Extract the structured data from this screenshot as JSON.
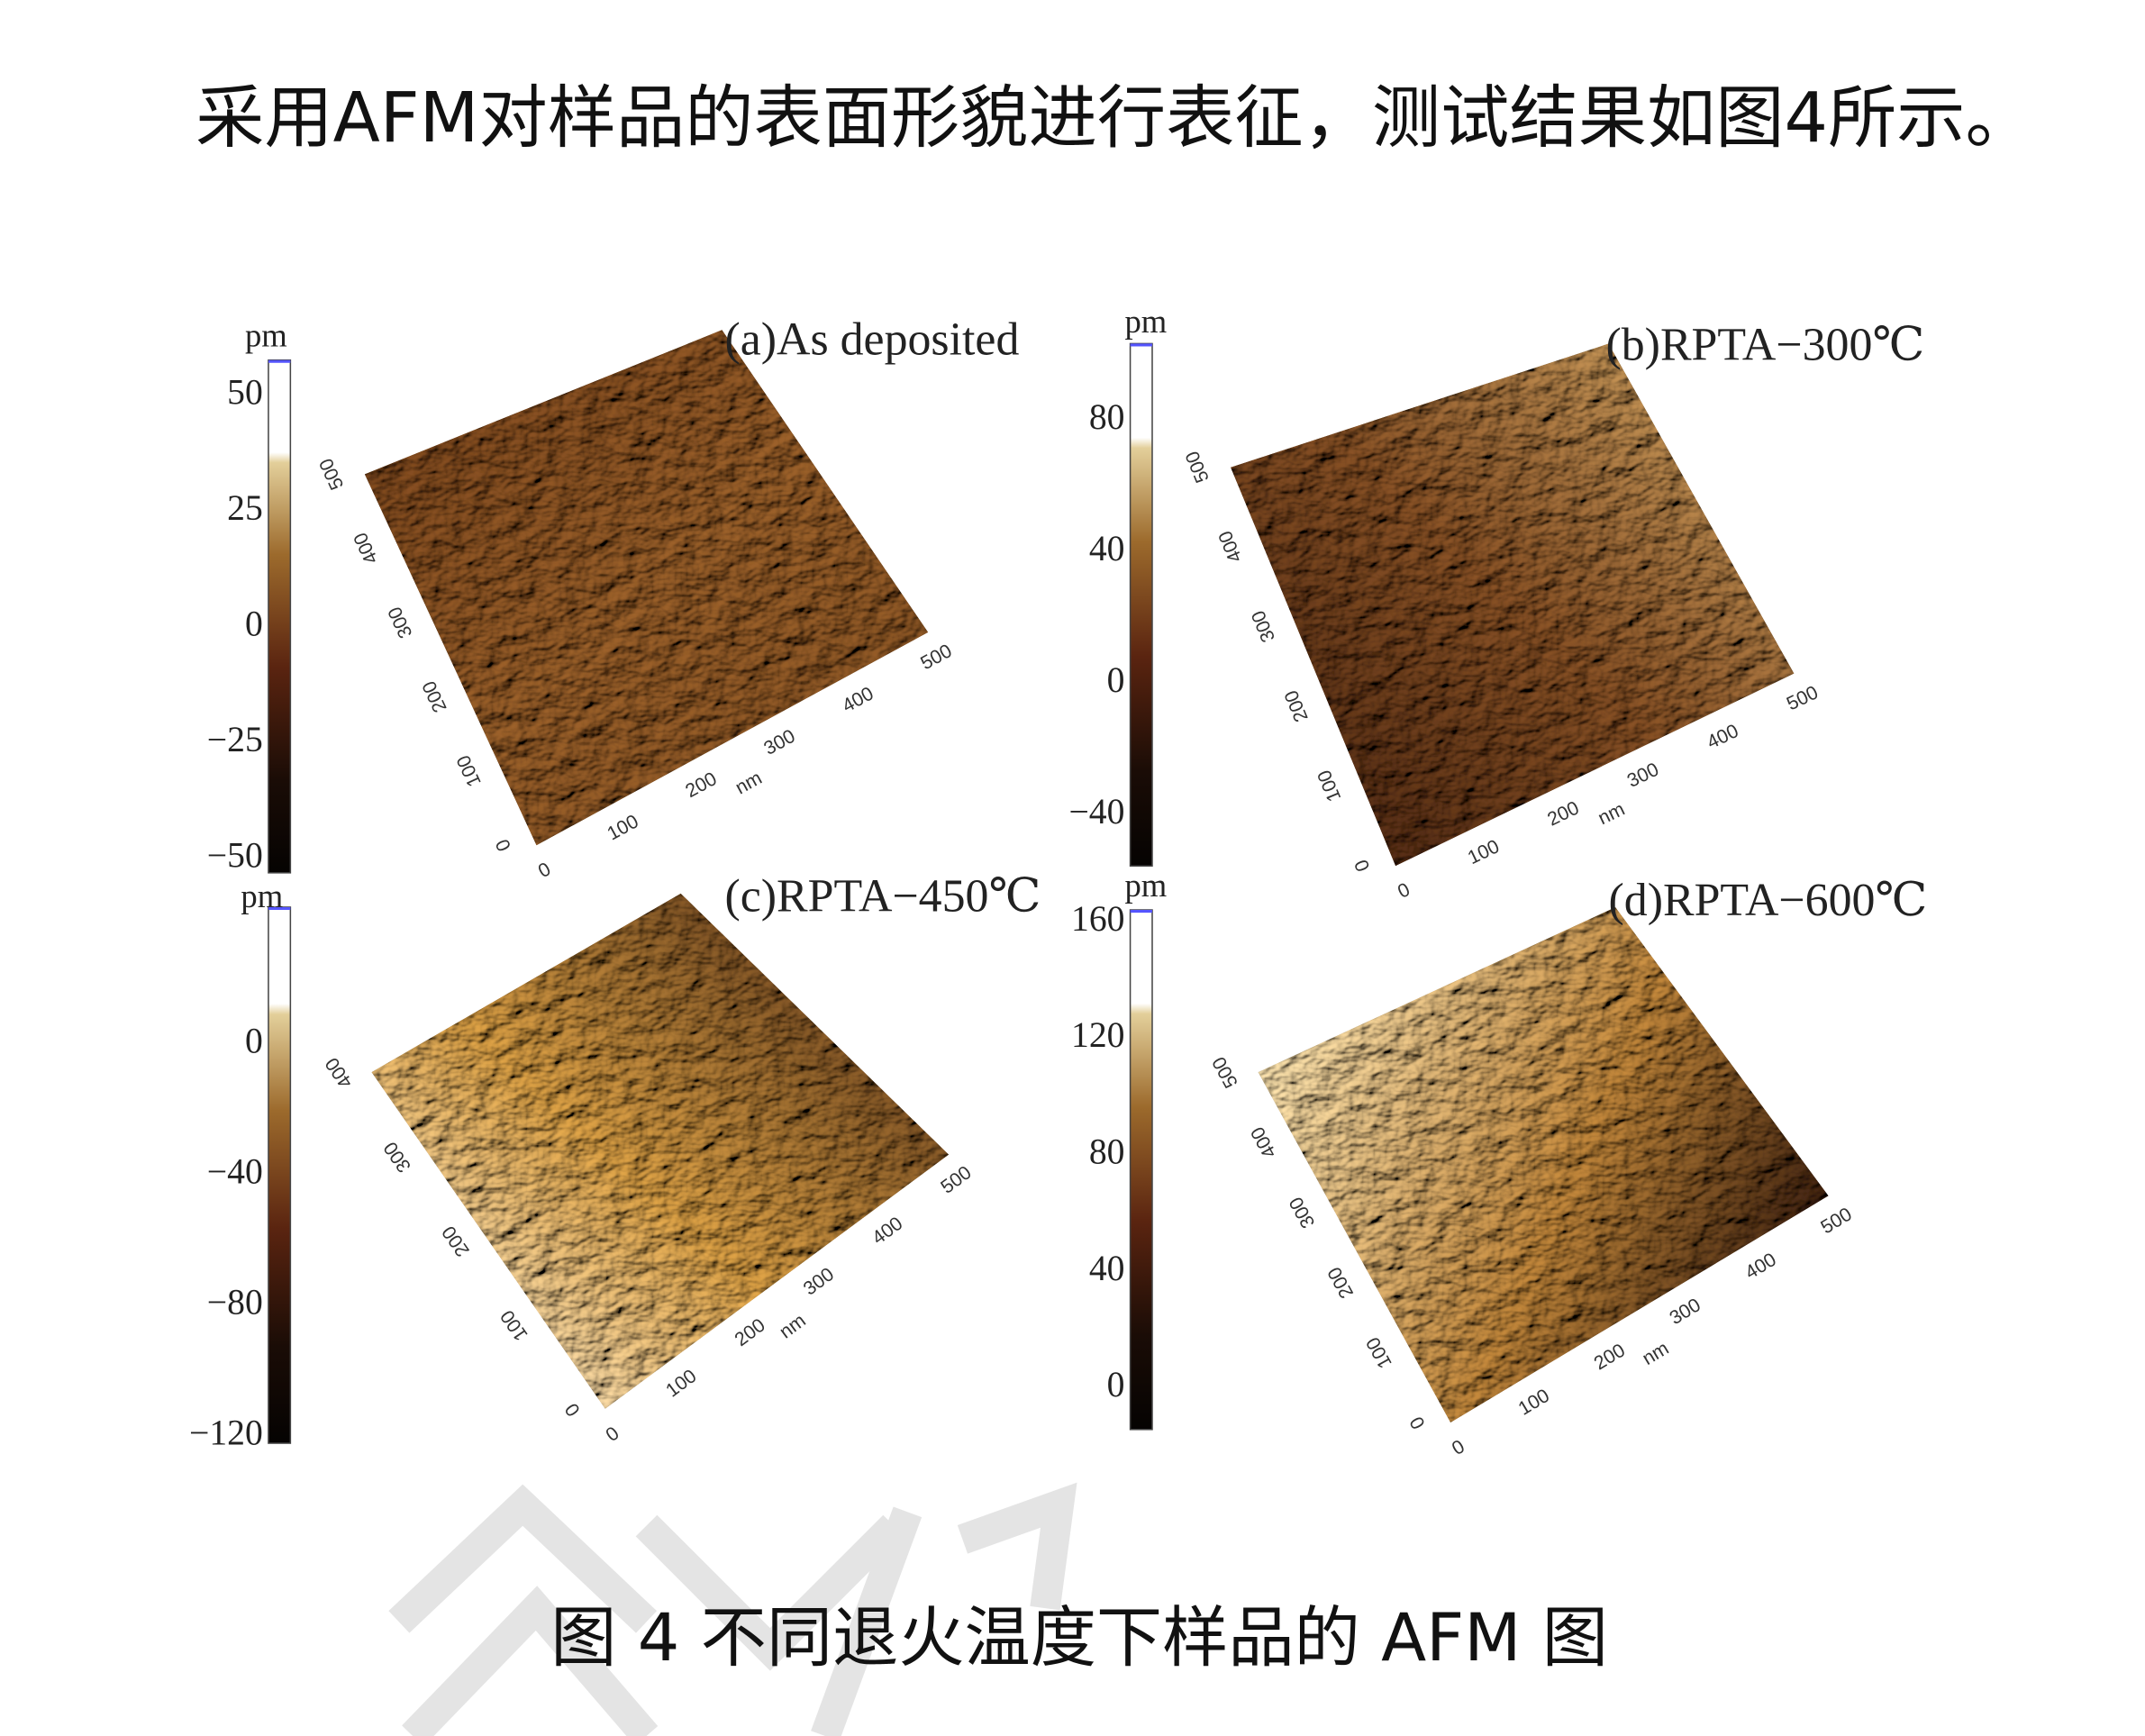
{
  "intro": "采用AFM对样品的表面形貌进行表征，测试结果如图4所示。",
  "figure": {
    "panels": [
      {
        "label": "(a)As deposited",
        "unit": "pm",
        "colorbar_ticks": [
          "50",
          "25",
          "0",
          "−25",
          "−50"
        ],
        "x_ticks": [
          "0",
          "100",
          "200",
          "300",
          "400",
          "500"
        ],
        "y_ticks": [
          "0",
          "100",
          "200",
          "300",
          "400",
          "500"
        ],
        "axis_unit": "nm"
      },
      {
        "label": "(b)RPTA−300℃",
        "unit": "pm",
        "colorbar_ticks": [
          "80",
          "40",
          "0",
          "−40"
        ],
        "x_ticks": [
          "0",
          "100",
          "200",
          "300",
          "400",
          "500"
        ],
        "y_ticks": [
          "0",
          "100",
          "200",
          "300",
          "400",
          "500"
        ],
        "axis_unit": "nm"
      },
      {
        "label": "(c)RPTA−450℃",
        "unit": "pm",
        "colorbar_ticks": [
          "0",
          "−40",
          "−80",
          "−120"
        ],
        "x_ticks": [
          "0",
          "100",
          "200",
          "300",
          "400",
          "500"
        ],
        "y_ticks": [
          "0",
          "100",
          "200",
          "300",
          "400"
        ],
        "axis_unit": "nm"
      },
      {
        "label": "(d)RPTA−600℃",
        "unit": "pm",
        "colorbar_ticks": [
          "160",
          "120",
          "80",
          "40",
          "0"
        ],
        "x_ticks": [
          "0",
          "100",
          "200",
          "300",
          "400",
          "500"
        ],
        "y_ticks": [
          "0",
          "100",
          "200",
          "300",
          "400",
          "500"
        ],
        "axis_unit": "nm"
      }
    ],
    "caption": "图 4 不同退火温度下样品的 AFM 图"
  }
}
